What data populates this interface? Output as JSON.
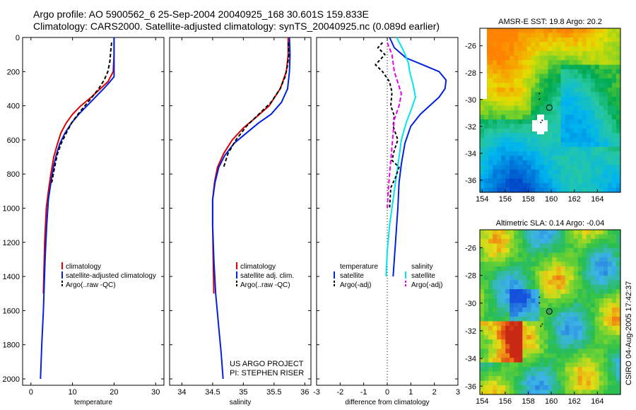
{
  "header": {
    "line1": "Argo profile: AO 5900562_6 25-Sep-2004 20040925_168 30.601S 159.833E",
    "line2": "Climatology: CARS2000. Satellite-adjusted climatology: synTS_20040925.nc (0.089d earlier)"
  },
  "credits": {
    "project": "US ARGO PROJECT",
    "pi": "PI: STEPHEN RISER"
  },
  "footer": {
    "stamp": "CSIRO 04-Aug-2005 17:42:37"
  },
  "colors": {
    "climatology": "#dd0000",
    "satellite": "#0022dd",
    "argo": "#000000",
    "salinity": "#00e5ee",
    "salsat": "#ee00ee"
  },
  "chart_data": [
    {
      "type": "line",
      "id": "temp",
      "xlabel": "temperature",
      "xlim": [
        -2,
        32
      ],
      "ylim": [
        0,
        2050
      ],
      "xticks": [
        0,
        10,
        20,
        30
      ],
      "yticks": [
        0,
        200,
        400,
        600,
        800,
        1000,
        1200,
        1400,
        1600,
        1800,
        2000
      ],
      "legend": [
        "climatology",
        "satellite-adjusted climatology",
        "Argo(..raw -QC)"
      ],
      "series": [
        {
          "name": "climatology",
          "color": "climatology",
          "dash": "",
          "x": [
            20,
            20,
            19.8,
            18.5,
            16.7,
            14.5,
            12,
            10,
            8.5,
            7.2,
            6.3,
            5.5,
            4.8,
            4.2,
            3.7,
            3.3,
            3
          ],
          "y": [
            0,
            100,
            200,
            260,
            300,
            350,
            400,
            450,
            500,
            560,
            630,
            700,
            800,
            900,
            1000,
            1200,
            1500
          ]
        },
        {
          "name": "satellite-adjusted climatology",
          "color": "satellite",
          "dash": "",
          "x": [
            20,
            20,
            20,
            19,
            17.5,
            15.5,
            13.5,
            11.5,
            9.8,
            8.2,
            7,
            6.2,
            5.5,
            4.8,
            4.2,
            3.8,
            3.4,
            3,
            2.6,
            2.3
          ],
          "y": [
            0,
            100,
            230,
            260,
            300,
            350,
            400,
            450,
            500,
            560,
            620,
            680,
            750,
            850,
            950,
            1100,
            1300,
            1600,
            1800,
            2000
          ]
        },
        {
          "name": "Argo(..raw -QC)",
          "color": "argo",
          "dash": "5,3",
          "x": [
            19.4,
            19.2,
            19,
            18.5,
            17.6,
            16.3,
            14.7,
            13,
            11.3,
            9.8,
            8.5,
            7.3,
            6.4,
            5.7,
            5
          ],
          "y": [
            30,
            80,
            140,
            200,
            250,
            300,
            350,
            400,
            450,
            500,
            560,
            620,
            680,
            760,
            850
          ]
        }
      ]
    },
    {
      "type": "line",
      "id": "sal",
      "xlabel": "salinity",
      "xlim": [
        33.8,
        36.1
      ],
      "ylim": [
        0,
        2050
      ],
      "xticks": [
        34,
        34.5,
        35,
        35.5,
        36
      ],
      "yticks": [
        0,
        200,
        400,
        600,
        800,
        1000,
        1200,
        1400,
        1600,
        1800,
        2000
      ],
      "legend": [
        "climatology",
        "satellite adj. clim.",
        "Argo(..raw -QC)"
      ],
      "series": [
        {
          "name": "climatology",
          "color": "climatology",
          "dash": "",
          "x": [
            35.73,
            35.73,
            35.7,
            35.6,
            35.42,
            35.2,
            35,
            34.82,
            34.68,
            34.58,
            34.53,
            34.5,
            34.5,
            34.51,
            34.52
          ],
          "y": [
            0,
            100,
            200,
            300,
            400,
            470,
            530,
            600,
            680,
            760,
            850,
            950,
            1100,
            1300,
            1500
          ]
        },
        {
          "name": "satellite adj. clim.",
          "color": "satellite",
          "dash": "",
          "x": [
            35.75,
            35.76,
            35.75,
            35.72,
            35.62,
            35.45,
            35.25,
            35.05,
            34.85,
            34.7,
            34.6,
            34.54,
            34.5,
            34.5,
            34.52,
            34.55,
            34.6,
            34.64,
            34.67
          ],
          "y": [
            0,
            100,
            200,
            300,
            380,
            450,
            500,
            560,
            620,
            690,
            760,
            850,
            950,
            1100,
            1300,
            1500,
            1700,
            1850,
            2000
          ]
        },
        {
          "name": "Argo(..raw -QC)",
          "color": "argo",
          "dash": "5,3",
          "x": [
            35.73,
            35.74,
            35.72,
            35.68,
            35.6,
            35.45,
            35.25,
            35.05,
            34.88,
            34.75,
            34.68
          ],
          "y": [
            30,
            100,
            160,
            230,
            300,
            380,
            450,
            520,
            600,
            680,
            760
          ]
        }
      ]
    },
    {
      "type": "line",
      "id": "diff",
      "xlabel": "difference from climatology",
      "xlim": [
        -3,
        3
      ],
      "ylim": [
        0,
        2050
      ],
      "xticks": [
        -3,
        -2,
        -1,
        0,
        1,
        2,
        3
      ],
      "yticks": [
        0,
        200,
        400,
        600,
        800,
        1000,
        1200,
        1400,
        1600,
        1800,
        2000
      ],
      "legend_left": [
        "temperature",
        "satellite",
        "Argo(-adj)"
      ],
      "legend_right": [
        "salinity",
        "satellite",
        "Argo(-adj)"
      ],
      "series": [
        {
          "name": "temperature satellite",
          "color": "satellite",
          "dash": "",
          "x": [
            0.1,
            0.3,
            0.8,
            1.5,
            2.2,
            2.5,
            2.45,
            2.2,
            1.8,
            1.4,
            1,
            0.75,
            0.6,
            0.5,
            0.45,
            0.4,
            0.35,
            0.3,
            0.25
          ],
          "y": [
            0,
            60,
            120,
            160,
            200,
            250,
            300,
            350,
            400,
            450,
            520,
            620,
            740,
            850,
            1000,
            1100,
            1200,
            1300,
            1400
          ]
        },
        {
          "name": "salinity satellite",
          "color": "salinity",
          "dash": "",
          "x": [
            0.4,
            0.7,
            0.9,
            0.95,
            1.1,
            1.2,
            1,
            0.8,
            0.6,
            0.5,
            0.4,
            0.25,
            0.1,
            0,
            -0.05
          ],
          "y": [
            0,
            80,
            150,
            200,
            280,
            350,
            430,
            500,
            600,
            700,
            800,
            950,
            1100,
            1250,
            1400
          ]
        },
        {
          "name": "temperature Argo(-adj)",
          "color": "argo",
          "dash": "4,3",
          "x": [
            -0.2,
            -0.4,
            -0.1,
            -0.5,
            -0.2,
            0.1,
            0.2,
            0.15,
            0.3,
            0.25,
            0.45,
            0.3,
            0.2,
            0.5,
            0.35,
            0.15,
            0.1
          ],
          "y": [
            30,
            60,
            100,
            160,
            200,
            260,
            320,
            400,
            460,
            520,
            600,
            660,
            720,
            760,
            820,
            880,
            1000
          ]
        },
        {
          "name": "salinity Argo(-adj)",
          "color": "salsat",
          "dash": "6,3",
          "x": [
            0,
            0.2,
            0.3,
            0.6,
            0.5,
            0.3,
            0.25,
            0.2,
            0.15,
            0.1,
            0.05,
            0
          ],
          "y": [
            30,
            100,
            200,
            330,
            400,
            480,
            560,
            640,
            720,
            800,
            880,
            1000
          ]
        }
      ]
    },
    {
      "type": "heatmap",
      "id": "sst",
      "title": "AMSR-E SST: 19.8 Argo: 20.2",
      "xticks": [
        154,
        156,
        158,
        160,
        162,
        164
      ],
      "yticks": [
        -26,
        -28,
        -30,
        -32,
        -34,
        -36
      ],
      "xlim": [
        153.8,
        166
      ],
      "ylim": [
        -36.9,
        -24.7
      ],
      "marker": [
        159.83,
        -30.6
      ]
    },
    {
      "type": "heatmap",
      "id": "sla",
      "title": "Altimetric SLA: 0.14 Argo: -0.04",
      "xticks": [
        154,
        156,
        158,
        160,
        162,
        164
      ],
      "yticks": [
        -26,
        -28,
        -30,
        -32,
        -34,
        -36
      ],
      "xlim": [
        153.8,
        166
      ],
      "ylim": [
        -36.6,
        -24.7
      ],
      "marker": [
        159.83,
        -30.6
      ]
    }
  ]
}
